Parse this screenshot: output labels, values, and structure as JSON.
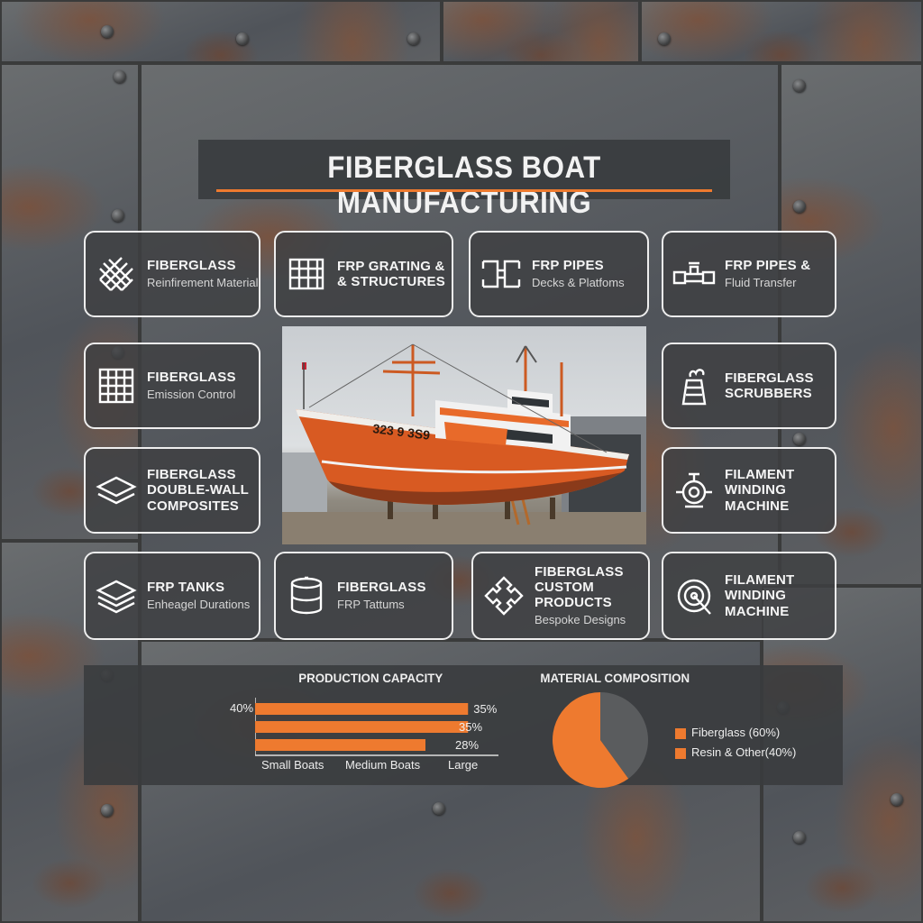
{
  "title": "FIBERGLASS BOAT MANUFACTURING",
  "colors": {
    "accent": "#ee7a2f",
    "card_border": "#eeeeee",
    "panel_bg": "#3a3c3e"
  },
  "cards": [
    {
      "title": "FIBERGLASS",
      "subtitle": "Reinfirement Material",
      "icon": "fiber-weave-icon"
    },
    {
      "title": "FRP GRATING &",
      "title2": "& STRUCTURES",
      "icon": "grating-icon"
    },
    {
      "title": "FRP PIPES",
      "subtitle": "Decks & Platfoms",
      "icon": "pipe-fittings-icon"
    },
    {
      "title": "FRP PIPES &",
      "subtitle": "Fluid Transfer",
      "icon": "valve-pipe-icon"
    },
    {
      "title": "FIBERGLASS",
      "subtitle": "Emission Control",
      "icon": "grid-panel-icon"
    },
    {
      "title": "FIBERGLASS",
      "title2": "SCRUBBERS",
      "icon": "scrubber-tower-icon"
    },
    {
      "title": "FIBERGLASS",
      "title2": "DOUBLE-WALL",
      "title3": "COMPOSITES",
      "icon": "layers-icon"
    },
    {
      "title": "FILAMENT",
      "title2": "WINDING",
      "title3": "MACHINE",
      "icon": "winding-machine-icon"
    },
    {
      "title": "FRP TANKS",
      "subtitle": "Enheagel Durations",
      "icon": "stacked-layers-icon"
    },
    {
      "title": "FIBERGLASS",
      "subtitle": "FRP Tattums",
      "icon": "tank-cylinder-icon"
    },
    {
      "title": "FIBERGLASS",
      "title2": "CUSTOM PRODUCTS",
      "subtitle": "Bespoke Designs",
      "icon": "puzzle-icon"
    },
    {
      "title": "FILAMENT",
      "title2": "WINDING",
      "title3": "MACHINE",
      "icon": "spool-icon"
    }
  ],
  "boat": {
    "hull_number": "323 9 3S9"
  },
  "chart_data": [
    {
      "type": "bar",
      "title": "PRODUCTION CAPACITY",
      "categories": [
        "Small Boats",
        "Medium Boats",
        "Large"
      ],
      "values": [
        35,
        35,
        28
      ],
      "value_labels": [
        "35%",
        "35%",
        "28%"
      ],
      "axis_label": "40%",
      "xlim": [
        0,
        40
      ]
    },
    {
      "type": "pie",
      "title": "MATERIAL COMPOSITION",
      "slices": [
        {
          "label": "Fiberglass (60%)",
          "value": 60,
          "color": "#ee7a2f"
        },
        {
          "label": "Resin & Other(40%)",
          "value": 40,
          "color": "#5a5c5e"
        }
      ]
    }
  ]
}
